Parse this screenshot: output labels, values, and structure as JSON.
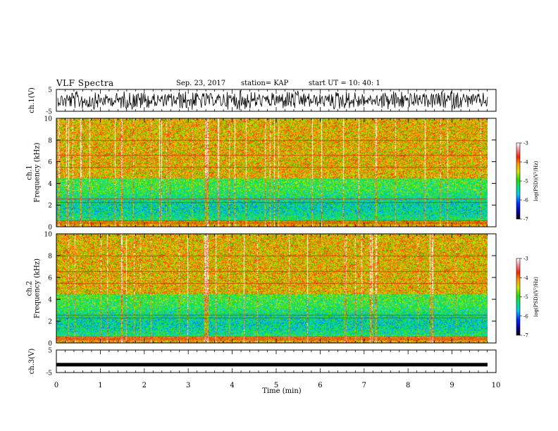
{
  "header": {
    "title": "VLF Spectra",
    "date": "Sep. 23, 2017",
    "station": "station= KAP",
    "start": "start UT =  10: 40: 1"
  },
  "chart_data": [
    {
      "type": "line",
      "name": "ch1-waveform",
      "ylabel": "ch.1(V)",
      "ylim": [
        -5,
        5
      ],
      "yticks": [
        {
          "v": 5,
          "label": "5"
        },
        {
          "v": -5,
          "label": "-5"
        }
      ],
      "xlim": [
        0,
        10
      ]
    },
    {
      "type": "heatmap",
      "name": "ch1-spectrogram",
      "ylabel": "ch.1\nFrequency (kHz)",
      "ylim": [
        0,
        10
      ],
      "yticks": [
        0,
        2,
        4,
        6,
        8,
        10
      ],
      "xlim": [
        0,
        9.83
      ],
      "colorbar": {
        "label": "log(PSD)(V²/Hz)",
        "range": [
          -7,
          -3
        ],
        "ticks": [
          -7,
          -6,
          -5,
          -4,
          -3
        ],
        "tick_labels": [
          "-7",
          "-6",
          "-5",
          "-4",
          "-3"
        ]
      }
    },
    {
      "type": "heatmap",
      "name": "ch2-spectrogram",
      "ylabel": "ch.2\nFrequency (kHz)",
      "ylim": [
        0,
        10
      ],
      "yticks": [
        0,
        2,
        4,
        6,
        8,
        10
      ],
      "xlim": [
        0,
        9.83
      ],
      "colorbar": {
        "label": "log(PSD)(V²/Hz)",
        "range": [
          -7,
          -3
        ],
        "ticks": [
          -7,
          -6,
          -5,
          -4,
          -3
        ],
        "tick_labels": [
          "-7",
          "-6",
          "-5",
          "-4",
          "-3"
        ]
      }
    },
    {
      "type": "line",
      "name": "ch3-waveform",
      "ylabel": "ch.3(V)",
      "ylim": [
        -5,
        5
      ],
      "yticks": [
        {
          "v": 5,
          "label": "5"
        },
        {
          "v": -5,
          "label": "-5"
        }
      ],
      "xlim": [
        0,
        10
      ],
      "constant_value": -1.5,
      "xlabel": "Time (min)",
      "xticks": [
        0,
        1,
        2,
        3,
        4,
        5,
        6,
        7,
        8,
        9,
        10
      ],
      "xtick_labels": [
        "0",
        "1",
        "2",
        "3",
        "4",
        "5",
        "6",
        "7",
        "8",
        "9",
        "10"
      ]
    }
  ]
}
